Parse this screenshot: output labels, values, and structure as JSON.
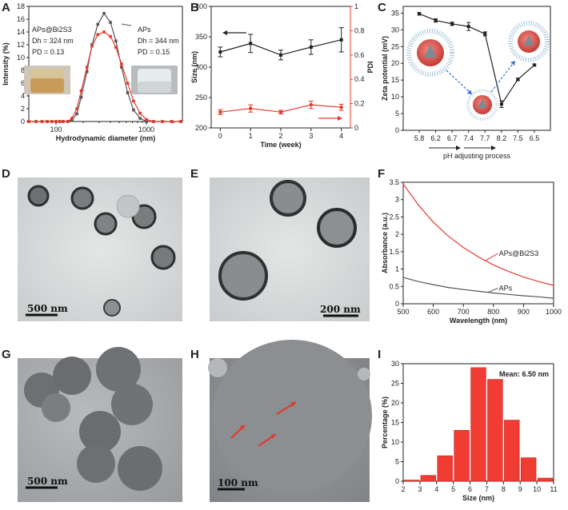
{
  "panels": {
    "A": {
      "letter": "A"
    },
    "B": {
      "letter": "B"
    },
    "C": {
      "letter": "C"
    },
    "D": {
      "letter": "D",
      "scalebar": "500 nm"
    },
    "E": {
      "letter": "E",
      "scalebar": "200 nm"
    },
    "F": {
      "letter": "F"
    },
    "G": {
      "letter": "G",
      "scalebar": "500 nm"
    },
    "H": {
      "letter": "H",
      "scalebar": "100 nm"
    },
    "I": {
      "letter": "I"
    }
  },
  "chart_data": [
    {
      "id": "A",
      "type": "line",
      "xlabel": "Hydrodynamic diameter (nm)",
      "ylabel": "Intensity (%)",
      "xscale": "log",
      "xlim": [
        50,
        2500
      ],
      "ylim": [
        0,
        18
      ],
      "xticks": [
        100,
        1000
      ],
      "yticks": [
        0,
        2,
        4,
        6,
        8,
        10,
        12,
        14,
        16,
        18
      ],
      "annotations": {
        "red": [
          "APs@Bi2S3",
          "Dh = 324 nm",
          "PD = 0.13"
        ],
        "gray": [
          "APs",
          "Dh = 344 nm",
          "PD = 0.15"
        ]
      },
      "series": [
        {
          "name": "APs",
          "color": "#555555",
          "x": [
            50,
            60,
            70,
            80,
            90,
            100,
            110,
            120,
            135,
            150,
            170,
            190,
            220,
            250,
            290,
            340,
            400,
            460,
            530,
            620,
            720,
            850,
            1000,
            1200,
            1500,
            1900,
            2400
          ],
          "y": [
            0,
            0,
            0,
            0,
            0,
            0,
            0,
            0,
            0,
            0.2,
            1.2,
            3.8,
            7.8,
            12,
            15.2,
            16.9,
            15.5,
            12.6,
            8.5,
            4.5,
            1.8,
            0.5,
            0,
            0,
            0,
            0,
            0
          ]
        },
        {
          "name": "APs@Bi2S3",
          "color": "#e8392e",
          "x": [
            50,
            60,
            70,
            80,
            90,
            100,
            110,
            120,
            135,
            150,
            170,
            190,
            220,
            250,
            290,
            340,
            400,
            460,
            530,
            620,
            720,
            850,
            1000,
            1200,
            1500,
            1900,
            2400
          ],
          "y": [
            0,
            0,
            0,
            0,
            0,
            0,
            0,
            0,
            0,
            0.5,
            2.0,
            4.8,
            8.5,
            11.8,
            13.6,
            14.0,
            13.3,
            11.6,
            9.0,
            6.0,
            3.2,
            1.3,
            0.3,
            0,
            0,
            0,
            0
          ]
        }
      ]
    },
    {
      "id": "B",
      "type": "line",
      "xlabel": "Time (week)",
      "ylabel": "Size (nm)",
      "ylabel_right": "PDI",
      "xlim": [
        -0.3,
        4.3
      ],
      "ylim": [
        200,
        400
      ],
      "ylim_right": [
        0,
        1.0
      ],
      "xticks": [
        0,
        1,
        2,
        3,
        4
      ],
      "yticks": [
        200,
        250,
        300,
        350,
        400
      ],
      "yticks_right": [
        0,
        0.2,
        0.4,
        0.6,
        0.8,
        1.0
      ],
      "series": [
        {
          "name": "Size",
          "axis": "left",
          "color": "#222222",
          "x": [
            0,
            1,
            2,
            3,
            4
          ],
          "y": [
            325,
            339,
            320,
            333,
            345
          ],
          "err": [
            8,
            15,
            8,
            12,
            20
          ]
        },
        {
          "name": "PDI",
          "axis": "right",
          "color": "#e8392e",
          "x": [
            0,
            1,
            2,
            3,
            4
          ],
          "y": [
            0.13,
            0.16,
            0.13,
            0.19,
            0.17
          ],
          "err": [
            0.02,
            0.03,
            0.015,
            0.03,
            0.025
          ]
        }
      ]
    },
    {
      "id": "C",
      "type": "line",
      "xlabel": "pH adjusting process",
      "ylabel": "Zeta potential (mV)",
      "categories": [
        "5.8",
        "6.2",
        "6.7",
        "7.4",
        "7.7",
        "8.2",
        "7.5",
        "6.5"
      ],
      "ylim": [
        0,
        37
      ],
      "yticks": [
        0,
        5,
        10,
        15,
        20,
        25,
        30,
        35
      ],
      "series": [
        {
          "name": "Zeta",
          "color": "#222222",
          "values": [
            34.8,
            32.8,
            31.8,
            31.0,
            28.8,
            7.8,
            15.2,
            19.5
          ],
          "err": [
            0.4,
            0.5,
            0.5,
            1.2,
            0.6,
            1.0,
            0.4,
            0.3
          ]
        }
      ]
    },
    {
      "id": "F",
      "type": "line",
      "xlabel": "Wavelength (nm)",
      "ylabel": "Absorbance (a.u.)",
      "xlim": [
        500,
        1000
      ],
      "ylim": [
        0,
        3.5
      ],
      "xticks": [
        500,
        600,
        700,
        800,
        900,
        1000
      ],
      "yticks": [
        0,
        0.5,
        1.0,
        1.5,
        2.0,
        2.5,
        3.0,
        3.5
      ],
      "series": [
        {
          "name": "APs@Bi2S3",
          "color": "#e8392e",
          "x": [
            500,
            550,
            600,
            650,
            700,
            750,
            800,
            850,
            900,
            950,
            1000
          ],
          "y": [
            3.45,
            2.85,
            2.35,
            1.95,
            1.62,
            1.35,
            1.12,
            0.93,
            0.77,
            0.64,
            0.53
          ]
        },
        {
          "name": "APs",
          "color": "#555555",
          "x": [
            500,
            550,
            600,
            650,
            700,
            750,
            800,
            850,
            900,
            950,
            1000
          ],
          "y": [
            0.76,
            0.64,
            0.55,
            0.47,
            0.41,
            0.36,
            0.31,
            0.27,
            0.23,
            0.2,
            0.16
          ]
        }
      ]
    },
    {
      "id": "I",
      "type": "bar",
      "xlabel": "Size (nm)",
      "ylabel": "Percentage (%)",
      "annotation": "Mean: 6.50 nm",
      "xlim": [
        2,
        11
      ],
      "ylim": [
        0,
        30
      ],
      "xticks": [
        2,
        3,
        4,
        5,
        6,
        7,
        8,
        9,
        10,
        11
      ],
      "yticks": [
        0,
        5,
        10,
        15,
        20,
        25,
        30
      ],
      "bin_centers": [
        2.5,
        3.5,
        4.5,
        5.5,
        6.5,
        7.5,
        8.5,
        9.5,
        10.5
      ],
      "values": [
        0.3,
        1.5,
        6.5,
        13.0,
        29.0,
        26.0,
        15.6,
        6.0,
        0.8
      ],
      "color": "#f03c32"
    }
  ]
}
